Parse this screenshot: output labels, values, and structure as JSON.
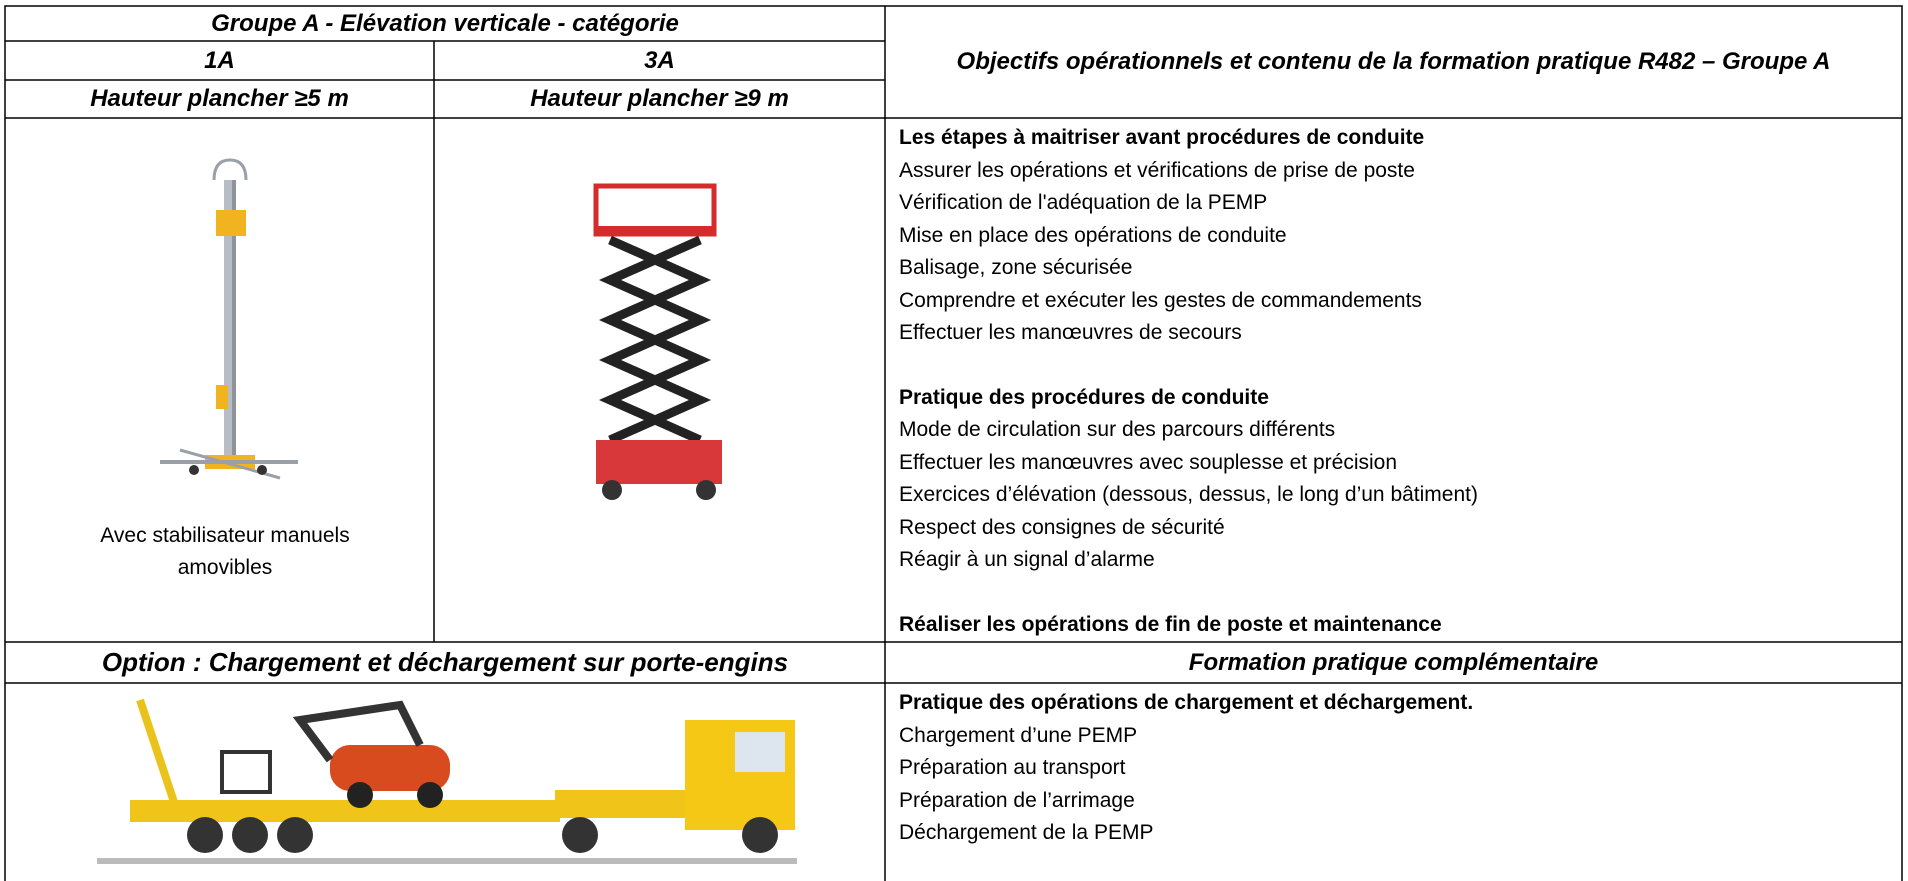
{
  "table": {
    "header": {
      "group_title": "Groupe A -  Elévation verticale -  catégorie",
      "col1": "1A",
      "col2": "3A",
      "height1": "Hauteur plancher ≥5 m",
      "height2": "Hauteur plancher ≥9 m",
      "objectives_title": "Objectifs opérationnels et contenu de la formation pratique R482 – Groupe A"
    },
    "caption_1a": "Avec stabilisateur manuels amovibles",
    "sections": [
      {
        "title": "Les  étapes à maitriser avant procédures de conduite",
        "items": [
          "Assurer les opérations et vérifications de prise de poste",
          "Vérification de l'adéquation de la PEMP",
          "Mise en place des opérations de conduite",
          "Balisage, zone sécurisée",
          "Comprendre et exécuter les gestes de commandements",
          "Effectuer les manœuvres de secours"
        ]
      },
      {
        "title": "Pratique des procédures de conduite",
        "items": [
          "Mode de circulation sur des parcours différents",
          "Effectuer les manœuvres avec souplesse et précision",
          "Exercices d’élévation (dessous, dessus, le long d’un bâtiment)",
          "Respect des consignes de sécurité",
          "Réagir à un signal d’alarme"
        ]
      },
      {
        "title": "Réaliser les opérations de fin de poste et maintenance",
        "items": []
      }
    ],
    "option_title": "Option : Chargement et déchargement sur porte-engins",
    "complementary_title": "Formation pratique complémentaire",
    "complementary": {
      "title": "Pratique des opérations de chargement et déchargement.",
      "items": [
        "Chargement d’une PEMP",
        "Préparation au transport",
        "Préparation de l’arrimage",
        "Déchargement  de la PEMP"
      ]
    }
  }
}
